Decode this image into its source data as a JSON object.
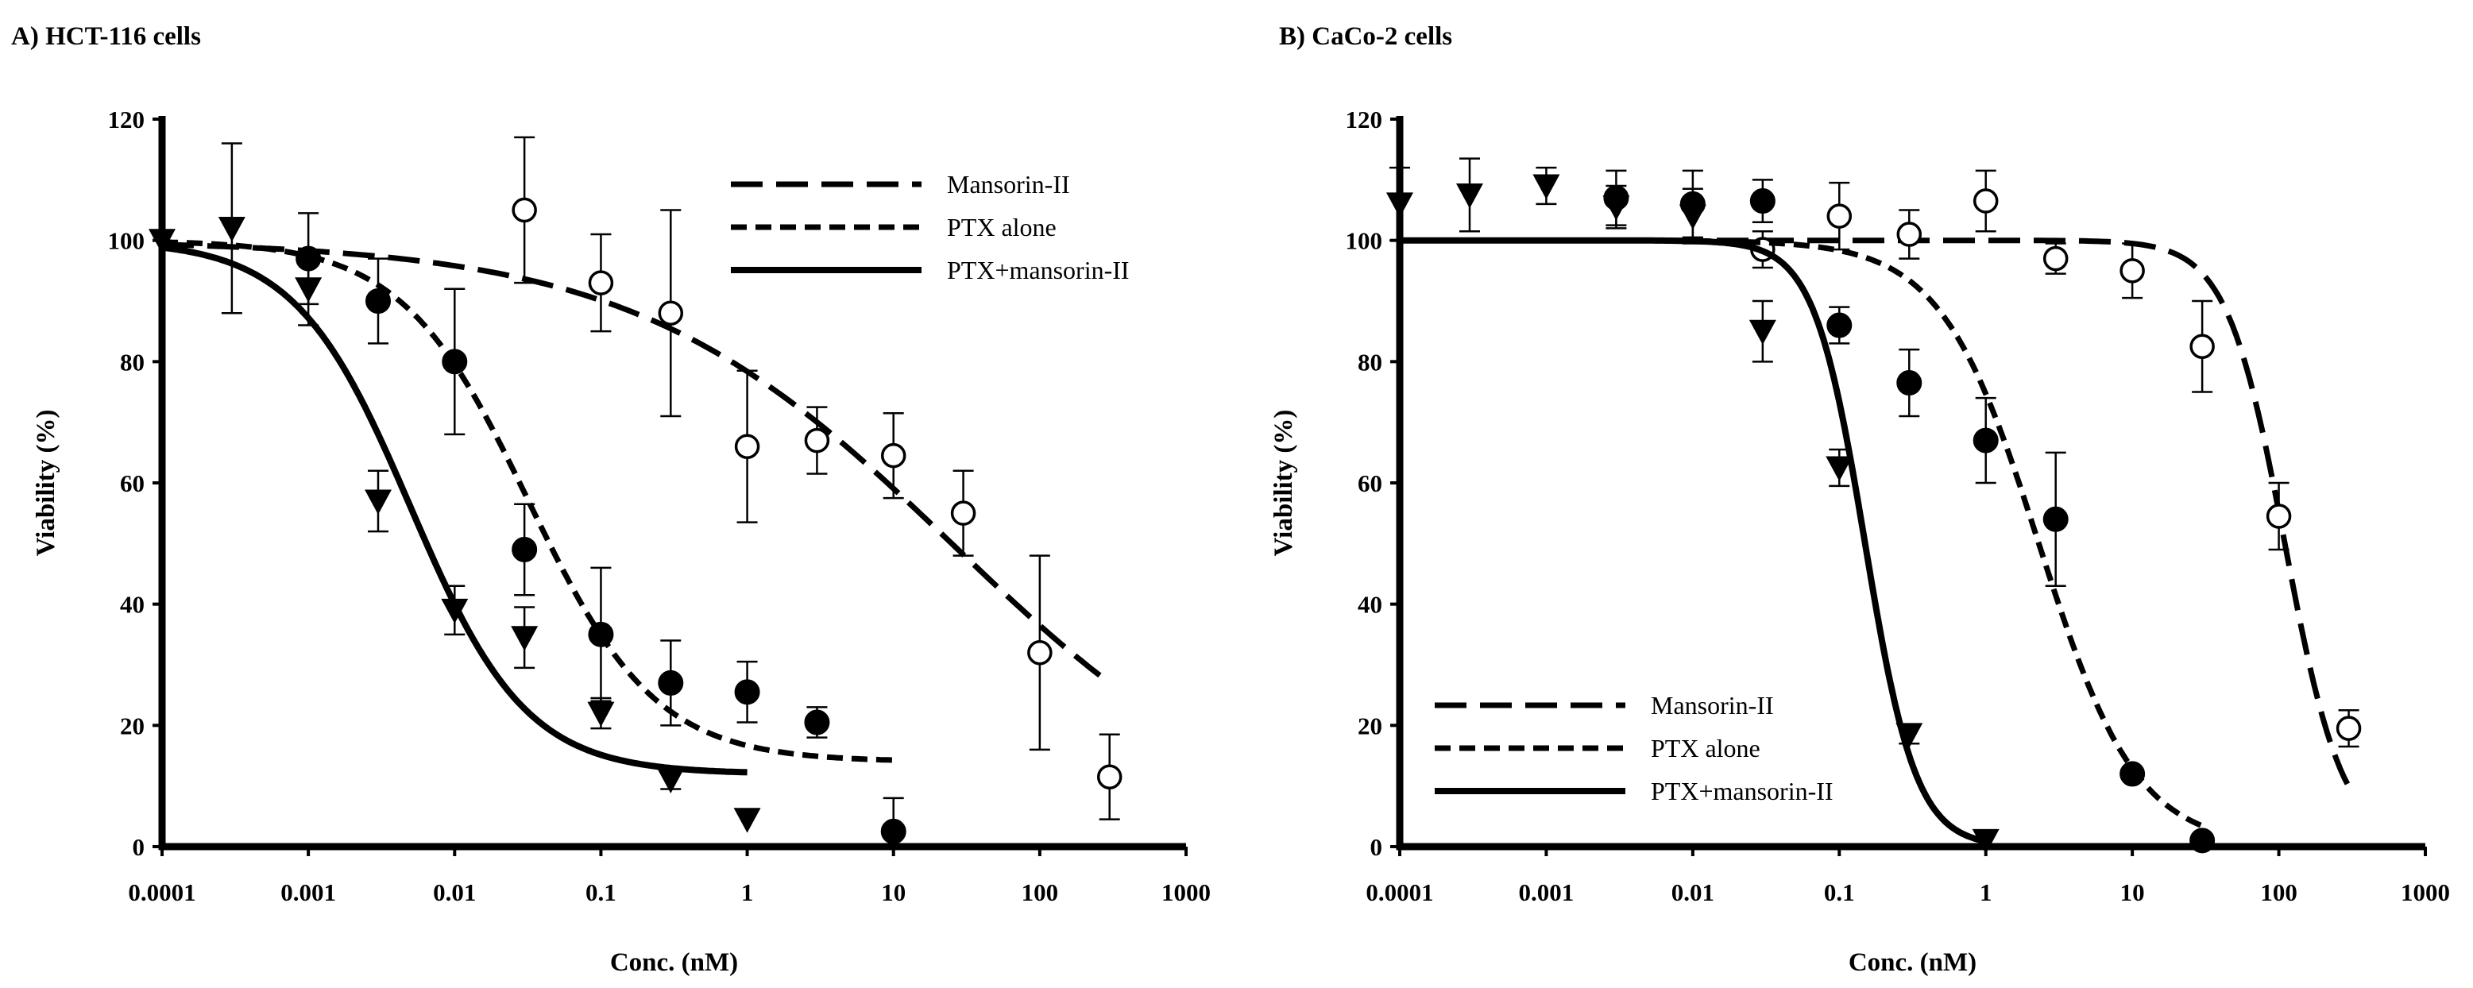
{
  "chart_data": [
    {
      "type": "scatter",
      "title": "A) HCT-116 cells",
      "xlabel": "Conc. (nM)",
      "ylabel": "Viability (%)",
      "xscale": "log",
      "xlim": [
        0.0001,
        1000
      ],
      "ylim": [
        0,
        120
      ],
      "x_ticks": [
        0.0001,
        0.001,
        0.01,
        0.1,
        1,
        10,
        100,
        1000
      ],
      "x_tick_labels": [
        "0.0001",
        "0.001",
        "0.01",
        "0.1",
        "1",
        "10",
        "100",
        "1000"
      ],
      "y_ticks": [
        0,
        20,
        40,
        60,
        80,
        100,
        120
      ],
      "y_tick_labels": [
        "0",
        "20",
        "40",
        "60",
        "80",
        "100",
        "120"
      ],
      "legend_position": "top-right",
      "series": [
        {
          "name": "Mansorin-II",
          "marker": "open-circle",
          "line_style": "long-dash",
          "curve": {
            "top": 100,
            "bottom": 0,
            "ic50": 25,
            "hill": 0.4,
            "x_range": [
              0.0001,
              300
            ]
          },
          "points": [
            {
              "x": 0.03,
              "y": 105,
              "err": 12
            },
            {
              "x": 0.1,
              "y": 93,
              "err": 8
            },
            {
              "x": 0.3,
              "y": 88,
              "err": 17
            },
            {
              "x": 1,
              "y": 66,
              "err": 12.5
            },
            {
              "x": 3,
              "y": 67,
              "err": 5.5
            },
            {
              "x": 10,
              "y": 64.5,
              "err": 7
            },
            {
              "x": 30,
              "y": 55,
              "err": 7
            },
            {
              "x": 100,
              "y": 32,
              "err": 16
            },
            {
              "x": 300,
              "y": 11.5,
              "err": 7
            }
          ]
        },
        {
          "name": "PTX alone",
          "marker": "filled-circle",
          "line_style": "short-dash",
          "curve": {
            "top": 100,
            "bottom": 14,
            "ic50": 0.032,
            "hill": 1.0,
            "x_range": [
              0.0001,
              10
            ]
          },
          "points": [
            {
              "x": 0.001,
              "y": 97,
              "err": 7.5
            },
            {
              "x": 0.003,
              "y": 90,
              "err": 7
            },
            {
              "x": 0.01,
              "y": 80,
              "err": 12
            },
            {
              "x": 0.03,
              "y": 49,
              "err": 7.5
            },
            {
              "x": 0.1,
              "y": 35,
              "err": 11
            },
            {
              "x": 0.3,
              "y": 27,
              "err": 7
            },
            {
              "x": 1,
              "y": 25.5,
              "err": 5
            },
            {
              "x": 3,
              "y": 20.5,
              "err": 2.5
            },
            {
              "x": 10,
              "y": 2.5,
              "err": 5.5
            }
          ]
        },
        {
          "name": "PTX+mansorin-II",
          "marker": "filled-triangle-down",
          "line_style": "solid",
          "curve": {
            "top": 100,
            "bottom": 12,
            "ic50": 0.005,
            "hill": 1.1,
            "x_range": [
              0.0001,
              1
            ]
          },
          "points": [
            {
              "x": 0.0001,
              "y": 100,
              "err": 0
            },
            {
              "x": 0.0003,
              "y": 102,
              "err": 14
            },
            {
              "x": 0.001,
              "y": 92,
              "err": 6
            },
            {
              "x": 0.003,
              "y": 57,
              "err": 5
            },
            {
              "x": 0.01,
              "y": 39,
              "err": 4
            },
            {
              "x": 0.03,
              "y": 34.5,
              "err": 5
            },
            {
              "x": 0.1,
              "y": 22,
              "err": 2.5
            },
            {
              "x": 0.3,
              "y": 11,
              "err": 1.5
            },
            {
              "x": 1,
              "y": 4.5,
              "err": 0
            }
          ]
        }
      ]
    },
    {
      "type": "scatter",
      "title": "B) CaCo-2 cells",
      "xlabel": "Conc. (nM)",
      "ylabel": "Viability (%)",
      "xscale": "log",
      "xlim": [
        0.0001,
        1000
      ],
      "ylim": [
        0,
        120
      ],
      "x_ticks": [
        0.0001,
        0.001,
        0.01,
        0.1,
        1,
        10,
        100,
        1000
      ],
      "x_tick_labels": [
        "0.0001",
        "0.001",
        "0.01",
        "0.1",
        "1",
        "10",
        "100",
        "1000"
      ],
      "y_ticks": [
        0,
        20,
        40,
        60,
        80,
        100,
        120
      ],
      "y_tick_labels": [
        "0",
        "20",
        "40",
        "60",
        "80",
        "100",
        "120"
      ],
      "legend_position": "bottom-left",
      "series": [
        {
          "name": "Mansorin-II",
          "marker": "open-circle",
          "line_style": "long-dash",
          "curve": {
            "top": 100,
            "bottom": 0,
            "ic50": 110,
            "hill": 2.2,
            "x_range": [
              0.0001,
              300
            ]
          },
          "points": [
            {
              "x": 0.03,
              "y": 98.5,
              "err": 3
            },
            {
              "x": 0.1,
              "y": 104,
              "err": 5.5
            },
            {
              "x": 0.3,
              "y": 101,
              "err": 4
            },
            {
              "x": 1,
              "y": 106.5,
              "err": 5
            },
            {
              "x": 3,
              "y": 97,
              "err": 2.5
            },
            {
              "x": 10,
              "y": 95,
              "err": 4.5
            },
            {
              "x": 30,
              "y": 82.5,
              "err": 7.5
            },
            {
              "x": 100,
              "y": 54.5,
              "err": 5.5
            },
            {
              "x": 300,
              "y": 19.5,
              "err": 3
            }
          ]
        },
        {
          "name": "PTX alone",
          "marker": "filled-circle",
          "line_style": "short-dash",
          "curve": {
            "top": 100,
            "bottom": 0,
            "ic50": 2.3,
            "hill": 1.3,
            "x_range": [
              0.0001,
              30
            ]
          },
          "points": [
            {
              "x": 0.003,
              "y": 107,
              "err": 4.5
            },
            {
              "x": 0.01,
              "y": 106,
              "err": 5.5
            },
            {
              "x": 0.03,
              "y": 106.5,
              "err": 3.5
            },
            {
              "x": 0.1,
              "y": 86,
              "err": 3
            },
            {
              "x": 0.3,
              "y": 76.5,
              "err": 5.5
            },
            {
              "x": 1,
              "y": 67,
              "err": 7
            },
            {
              "x": 3,
              "y": 54,
              "err": 11
            },
            {
              "x": 10,
              "y": 12,
              "err": 0
            },
            {
              "x": 30,
              "y": 1,
              "err": 1
            }
          ]
        },
        {
          "name": "PTX+mansorin-II",
          "marker": "filled-triangle-down",
          "line_style": "solid",
          "curve": {
            "top": 100,
            "bottom": 0,
            "ic50": 0.15,
            "hill": 2.5,
            "x_range": [
              0.0001,
              1
            ]
          },
          "points": [
            {
              "x": 0.0001,
              "y": 106,
              "err": 6
            },
            {
              "x": 0.0003,
              "y": 107.5,
              "err": 6
            },
            {
              "x": 0.001,
              "y": 109,
              "err": 3
            },
            {
              "x": 0.003,
              "y": 105.5,
              "err": 3.5
            },
            {
              "x": 0.01,
              "y": 104,
              "err": 4.5
            },
            {
              "x": 0.03,
              "y": 85,
              "err": 5
            },
            {
              "x": 0.1,
              "y": 62.5,
              "err": 3
            },
            {
              "x": 0.3,
              "y": 18.5,
              "err": 1.5
            },
            {
              "x": 1,
              "y": 1,
              "err": 0
            }
          ]
        }
      ]
    }
  ]
}
